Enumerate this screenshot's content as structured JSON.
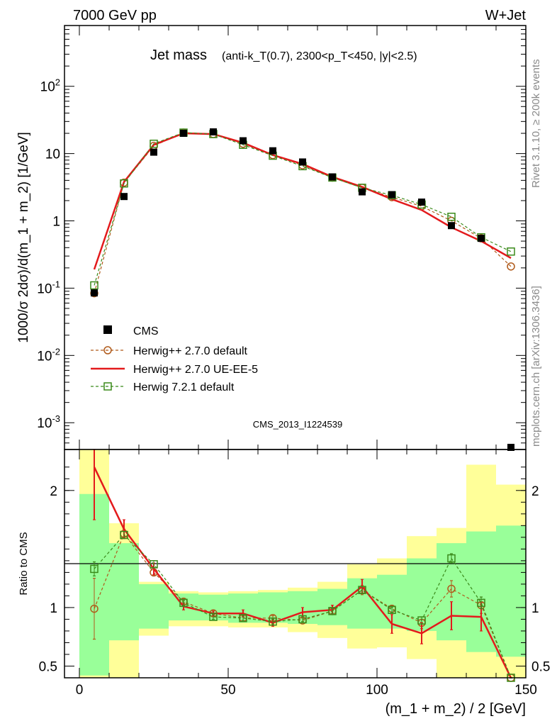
{
  "header": {
    "left": "7000 GeV pp",
    "right": "W+Jet"
  },
  "title": {
    "main": "Jet mass",
    "detail": "(anti-k_T(0.7), 2300<p_T<450, |y|<2.5)"
  },
  "side_labels": {
    "rivet": "Rivet 3.1.10, ≥ 200k events",
    "mcplots": "mcplots.cern.ch [arXiv:1306.3436]"
  },
  "analysis_tag": "CMS_2013_I1224539",
  "axes": {
    "ylabel_main": "1000/σ 2dσ)/d(m_1 + m_2) [1/GeV]",
    "ylabel_ratio": "Ratio to CMS",
    "xlabel": "(m_1 + m_2) / 2 [GeV]"
  },
  "legend": {
    "cms": "CMS",
    "hw270_default": "Herwig++ 2.7.0 default",
    "hw270_ueee5": "Herwig++ 2.7.0 UE-EE-5",
    "hw721_default": "Herwig 7.2.1 default"
  },
  "colors": {
    "data": "#000000",
    "hw270_default": "#b05a1a",
    "hw270_ueee5": "#e31a1c",
    "hw721_default": "#3a8a1a",
    "band_inner": "#99ff99",
    "band_outer": "#ffff99",
    "side_text": "#8a8a8a"
  },
  "chart_data": {
    "type": "line",
    "x_range": [
      -5,
      150
    ],
    "main_y_log": true,
    "main_y_range": [
      0.0004,
      800
    ],
    "ratio_y_range": [
      0.4,
      2.35
    ],
    "x_ticks": [
      0,
      50,
      100,
      150
    ],
    "main_y_ticks": [
      {
        "v": 0.001,
        "label": "10-3"
      },
      {
        "v": 0.01,
        "label": "10-2"
      },
      {
        "v": 0.1,
        "label": "10-1"
      },
      {
        "v": 1,
        "label": "1"
      },
      {
        "v": 10,
        "label": "10"
      },
      {
        "v": 100,
        "label": "102"
      }
    ],
    "ratio_y_ticks": [
      0.5,
      1,
      2
    ],
    "bin_edges": [
      0,
      10,
      20,
      30,
      40,
      50,
      60,
      70,
      80,
      90,
      100,
      110,
      120,
      130,
      140,
      150
    ],
    "x": [
      5,
      15,
      25,
      35,
      45,
      55,
      65,
      75,
      85,
      95,
      105,
      115,
      125,
      135,
      145
    ],
    "data_values": [
      0.085,
      2.3,
      10.5,
      20.0,
      21.0,
      15.5,
      11.0,
      7.5,
      4.5,
      2.7,
      2.45,
      1.9,
      0.85,
      0.55,
      0.00035
    ],
    "band_inner": [
      [
        0.42,
        1.97
      ],
      [
        0.72,
        1.55
      ],
      [
        0.82,
        1.2
      ],
      [
        0.89,
        1.12
      ],
      [
        0.89,
        1.11
      ],
      [
        0.87,
        1.12
      ],
      [
        0.87,
        1.13
      ],
      [
        0.86,
        1.14
      ],
      [
        0.85,
        1.16
      ],
      [
        0.82,
        1.25
      ],
      [
        0.82,
        1.28
      ],
      [
        0.8,
        1.42
      ],
      [
        0.72,
        1.55
      ],
      [
        0.62,
        1.65
      ],
      [
        0.58,
        1.7
      ]
    ],
    "band_outer": [
      [
        0.4,
        2.35
      ],
      [
        0.4,
        1.72
      ],
      [
        0.76,
        1.22
      ],
      [
        0.84,
        1.14
      ],
      [
        0.84,
        1.13
      ],
      [
        0.83,
        1.14
      ],
      [
        0.83,
        1.15
      ],
      [
        0.79,
        1.17
      ],
      [
        0.74,
        1.22
      ],
      [
        0.65,
        1.37
      ],
      [
        0.66,
        1.42
      ],
      [
        0.56,
        1.61
      ],
      [
        0.4,
        1.68
      ],
      [
        0.4,
        2.22
      ],
      [
        0.4,
        2.05
      ]
    ],
    "series": [
      {
        "name": "Herwig++ 2.7.0 default",
        "values": [
          0.084,
          3.7,
          13.0,
          20.5,
          19.5,
          14.0,
          9.5,
          6.7,
          4.4,
          3.1,
          2.25,
          1.65,
          1.0,
          0.55,
          0.21
        ],
        "ratio": [
          0.99,
          1.63,
          1.3,
          1.05,
          0.95,
          0.91,
          0.91,
          0.89,
          0.97,
          1.15,
          0.99,
          0.87,
          1.16,
          1.02,
          0.35
        ],
        "ratio_err": [
          0.26,
          0.04,
          0.03,
          0.02,
          0.02,
          0.02,
          0.02,
          0.02,
          0.03,
          0.04,
          0.03,
          0.05,
          0.07,
          0.07,
          0.03
        ]
      },
      {
        "name": "Herwig++ 2.7.0 UE-EE-5",
        "values": [
          0.19,
          3.8,
          13.5,
          20.0,
          19.5,
          14.5,
          9.5,
          7.0,
          4.5,
          3.2,
          2.1,
          1.45,
          0.8,
          0.5,
          0.28
        ],
        "ratio": [
          2.2,
          1.67,
          1.33,
          1.01,
          0.95,
          0.95,
          0.87,
          0.96,
          0.98,
          1.18,
          0.86,
          0.78,
          0.93,
          0.92,
          0.35
        ],
        "ratio_err": [
          0.45,
          0.08,
          0.05,
          0.03,
          0.02,
          0.03,
          0.03,
          0.04,
          0.04,
          0.06,
          0.08,
          0.09,
          0.12,
          0.12,
          0.05
        ]
      },
      {
        "name": "Herwig 7.2.1 default",
        "values": [
          0.11,
          3.6,
          14.0,
          20.5,
          19.5,
          13.5,
          9.3,
          6.5,
          4.4,
          3.1,
          2.4,
          1.75,
          1.15,
          0.57,
          0.35
        ],
        "ratio": [
          1.33,
          1.62,
          1.37,
          1.04,
          0.92,
          0.91,
          0.88,
          0.9,
          0.97,
          1.15,
          0.98,
          0.89,
          1.42,
          1.04,
          0.35
        ],
        "ratio_err": [
          0.06,
          0.03,
          0.03,
          0.02,
          0.02,
          0.02,
          0.02,
          0.02,
          0.02,
          0.03,
          0.02,
          0.03,
          0.04,
          0.05,
          0.03
        ]
      }
    ]
  }
}
